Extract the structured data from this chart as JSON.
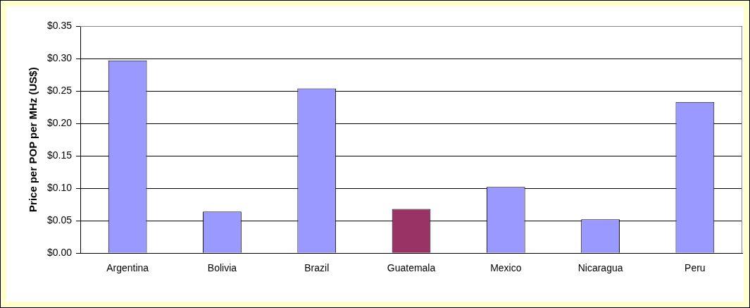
{
  "chart_data": {
    "type": "bar",
    "ylabel": "Price per POP per MHz (US$)",
    "categories": [
      "Argentina",
      "Bolivia",
      "Brazil",
      "Guatemala",
      "Mexico",
      "Nicaragua",
      "Peru"
    ],
    "values": [
      0.297,
      0.064,
      0.254,
      0.068,
      0.102,
      0.052,
      0.233
    ],
    "colors": [
      "#9999ff",
      "#9999ff",
      "#9999ff",
      "#993366",
      "#9999ff",
      "#9999ff",
      "#9999ff"
    ],
    "ylim": [
      0,
      0.35
    ],
    "yticks": [
      {
        "value": 0,
        "label": "$0.00"
      },
      {
        "value": 0.05,
        "label": "$0.05"
      },
      {
        "value": 0.1,
        "label": "$0.10"
      },
      {
        "value": 0.15,
        "label": "$0.15"
      },
      {
        "value": 0.2,
        "label": "$0.20"
      },
      {
        "value": 0.25,
        "label": "$0.25"
      },
      {
        "value": 0.3,
        "label": "$0.30"
      },
      {
        "value": 0.35,
        "label": "$0.35"
      }
    ],
    "grid": "y"
  }
}
